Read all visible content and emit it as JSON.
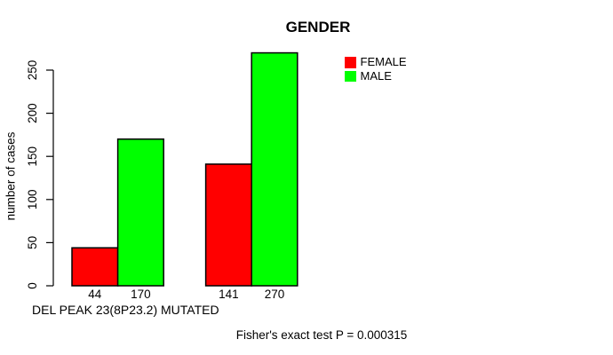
{
  "chart_data": {
    "type": "bar",
    "title": "GENDER",
    "ylabel": "number of cases",
    "xlabel": "DEL PEAK 23(8P23.2) MUTATED",
    "annotation": "Fisher's exact test P = 0.000315",
    "background_color": "#ffffff",
    "axis_color": "#000000",
    "bar_border_color": "#000000",
    "grid": false,
    "legend_position": "top-right",
    "ylim": [
      0,
      270
    ],
    "yticks": [
      0,
      50,
      100,
      150,
      200,
      250
    ],
    "legend": [
      {
        "label": "FEMALE",
        "color": "#ff0000"
      },
      {
        "label": "MALE",
        "color": "#00ff00"
      }
    ],
    "groups": [
      {
        "bars": [
          {
            "series": "FEMALE",
            "value": 44
          },
          {
            "series": "MALE",
            "value": 170
          }
        ]
      },
      {
        "bars": [
          {
            "series": "FEMALE",
            "value": 141
          },
          {
            "series": "MALE",
            "value": 270
          }
        ]
      }
    ],
    "bar_value_labels": [
      44,
      170,
      141,
      270
    ]
  }
}
